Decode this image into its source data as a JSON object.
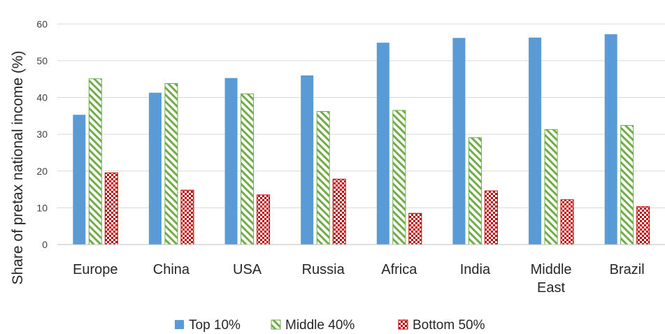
{
  "chart_data": {
    "type": "bar",
    "ylabel": "Share of pretax national income (%)",
    "xlabel": "",
    "ylim": [
      0,
      65
    ],
    "yticks": [
      0,
      10,
      20,
      30,
      40,
      50,
      60
    ],
    "categories": [
      "Europe",
      "China",
      "USA",
      "Russia",
      "Africa",
      "India",
      "Middle East",
      "Brazil"
    ],
    "category_lines": [
      [
        "Europe"
      ],
      [
        "China"
      ],
      [
        "USA"
      ],
      [
        "Russia"
      ],
      [
        "Africa"
      ],
      [
        "India"
      ],
      [
        "Middle",
        "East"
      ],
      [
        "Brazil"
      ]
    ],
    "series": [
      {
        "name": "Top 10%",
        "values": [
          35.3,
          41.3,
          45.3,
          46.0,
          54.9,
          56.2,
          56.3,
          57.2
        ],
        "color": "#5b9bd5",
        "pattern": "solid"
      },
      {
        "name": "Middle 40%",
        "values": [
          45.1,
          43.8,
          41.0,
          36.2,
          36.5,
          29.1,
          31.3,
          32.4
        ],
        "color": "#70ad47",
        "pattern": "diagonal-stripes"
      },
      {
        "name": "Bottom 50%",
        "values": [
          19.5,
          14.8,
          13.5,
          17.8,
          8.5,
          14.6,
          12.2,
          10.3
        ],
        "color": "#c00000",
        "pattern": "checkerboard"
      }
    ],
    "grid": "horizontal",
    "legend_position": "bottom"
  }
}
